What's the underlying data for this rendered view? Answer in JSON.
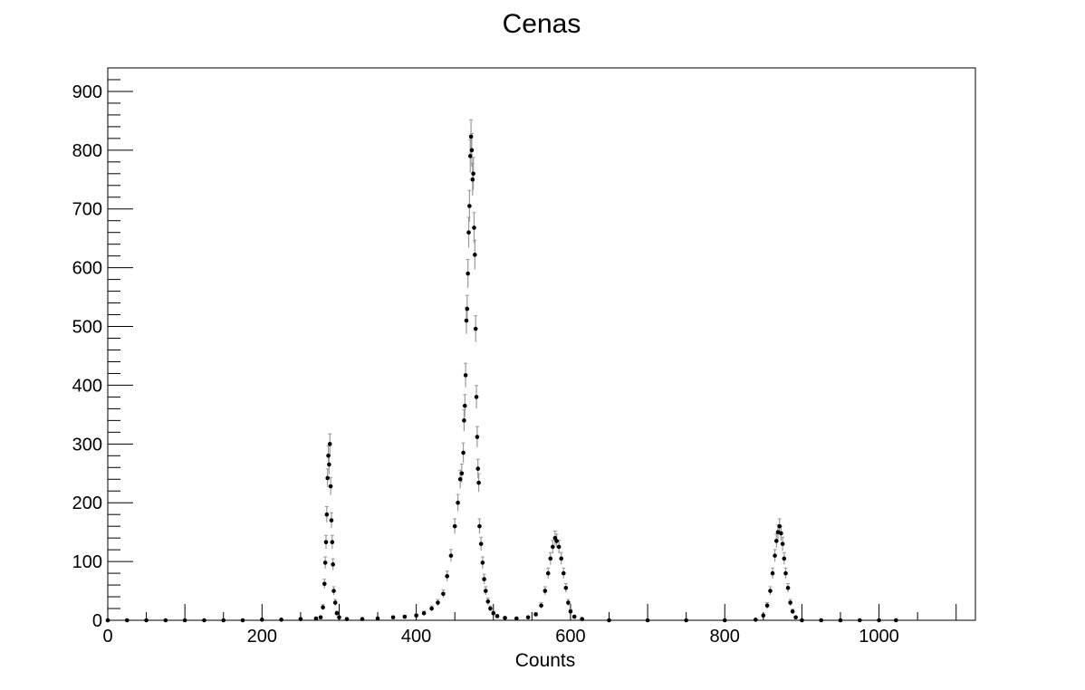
{
  "chart_data": {
    "type": "scatter",
    "title": "Cenas",
    "xlabel": "Counts",
    "ylabel": "",
    "xlim": [
      0,
      1125
    ],
    "ylim": [
      0,
      940
    ],
    "x_ticks": [
      0,
      200,
      400,
      600,
      800,
      1000
    ],
    "y_ticks": [
      0,
      100,
      200,
      300,
      400,
      500,
      600,
      700,
      800,
      900
    ],
    "grid": false,
    "legend": "none",
    "colors": {
      "marker": "#000000",
      "error_bar": "#9a9a9a",
      "axis": "#000000"
    },
    "series": [
      {
        "points": [
          {
            "x": 0,
            "y": 0
          },
          {
            "x": 25,
            "y": 0
          },
          {
            "x": 50,
            "y": 0
          },
          {
            "x": 75,
            "y": 0
          },
          {
            "x": 100,
            "y": 0
          },
          {
            "x": 125,
            "y": 0
          },
          {
            "x": 150,
            "y": 0
          },
          {
            "x": 175,
            "y": 0
          },
          {
            "x": 200,
            "y": 1
          },
          {
            "x": 225,
            "y": 1
          },
          {
            "x": 250,
            "y": 2
          },
          {
            "x": 270,
            "y": 3
          },
          {
            "x": 276,
            "y": 5
          },
          {
            "x": 279,
            "y": 22
          },
          {
            "x": 281,
            "y": 62
          },
          {
            "x": 282,
            "y": 98
          },
          {
            "x": 283,
            "y": 133
          },
          {
            "x": 284,
            "y": 180
          },
          {
            "x": 285,
            "y": 242
          },
          {
            "x": 286,
            "y": 280
          },
          {
            "x": 287,
            "y": 265
          },
          {
            "x": 288,
            "y": 300
          },
          {
            "x": 289,
            "y": 228
          },
          {
            "x": 290,
            "y": 170
          },
          {
            "x": 291,
            "y": 133
          },
          {
            "x": 292,
            "y": 95
          },
          {
            "x": 293,
            "y": 50
          },
          {
            "x": 295,
            "y": 30
          },
          {
            "x": 297,
            "y": 12
          },
          {
            "x": 300,
            "y": 5
          },
          {
            "x": 310,
            "y": 2
          },
          {
            "x": 330,
            "y": 2
          },
          {
            "x": 350,
            "y": 3
          },
          {
            "x": 370,
            "y": 5
          },
          {
            "x": 385,
            "y": 6
          },
          {
            "x": 400,
            "y": 8
          },
          {
            "x": 410,
            "y": 12
          },
          {
            "x": 420,
            "y": 20
          },
          {
            "x": 428,
            "y": 30
          },
          {
            "x": 435,
            "y": 45
          },
          {
            "x": 440,
            "y": 75
          },
          {
            "x": 445,
            "y": 110
          },
          {
            "x": 450,
            "y": 160
          },
          {
            "x": 454,
            "y": 200
          },
          {
            "x": 457,
            "y": 240
          },
          {
            "x": 459,
            "y": 250
          },
          {
            "x": 461,
            "y": 285
          },
          {
            "x": 462,
            "y": 340
          },
          {
            "x": 463,
            "y": 365
          },
          {
            "x": 464,
            "y": 417
          },
          {
            "x": 465,
            "y": 510
          },
          {
            "x": 466,
            "y": 530
          },
          {
            "x": 467,
            "y": 590
          },
          {
            "x": 468,
            "y": 660
          },
          {
            "x": 469,
            "y": 705
          },
          {
            "x": 470,
            "y": 790
          },
          {
            "x": 471,
            "y": 823
          },
          {
            "x": 472,
            "y": 800
          },
          {
            "x": 473,
            "y": 750
          },
          {
            "x": 474,
            "y": 760
          },
          {
            "x": 475,
            "y": 668
          },
          {
            "x": 476,
            "y": 622
          },
          {
            "x": 477,
            "y": 496
          },
          {
            "x": 478,
            "y": 380
          },
          {
            "x": 479,
            "y": 312
          },
          {
            "x": 480,
            "y": 258
          },
          {
            "x": 481,
            "y": 234
          },
          {
            "x": 482,
            "y": 160
          },
          {
            "x": 484,
            "y": 130
          },
          {
            "x": 486,
            "y": 98
          },
          {
            "x": 488,
            "y": 70
          },
          {
            "x": 490,
            "y": 50
          },
          {
            "x": 493,
            "y": 32
          },
          {
            "x": 496,
            "y": 20
          },
          {
            "x": 500,
            "y": 12
          },
          {
            "x": 505,
            "y": 7
          },
          {
            "x": 515,
            "y": 4
          },
          {
            "x": 530,
            "y": 3
          },
          {
            "x": 545,
            "y": 5
          },
          {
            "x": 555,
            "y": 10
          },
          {
            "x": 562,
            "y": 25
          },
          {
            "x": 567,
            "y": 50
          },
          {
            "x": 571,
            "y": 80
          },
          {
            "x": 574,
            "y": 105
          },
          {
            "x": 577,
            "y": 125
          },
          {
            "x": 580,
            "y": 140
          },
          {
            "x": 582,
            "y": 135
          },
          {
            "x": 585,
            "y": 125
          },
          {
            "x": 588,
            "y": 105
          },
          {
            "x": 591,
            "y": 80
          },
          {
            "x": 594,
            "y": 55
          },
          {
            "x": 597,
            "y": 30
          },
          {
            "x": 600,
            "y": 15
          },
          {
            "x": 605,
            "y": 6
          },
          {
            "x": 615,
            "y": 2
          },
          {
            "x": 650,
            "y": 0
          },
          {
            "x": 700,
            "y": 0
          },
          {
            "x": 750,
            "y": 0
          },
          {
            "x": 800,
            "y": 0
          },
          {
            "x": 840,
            "y": 1
          },
          {
            "x": 850,
            "y": 8
          },
          {
            "x": 855,
            "y": 25
          },
          {
            "x": 859,
            "y": 50
          },
          {
            "x": 862,
            "y": 80
          },
          {
            "x": 865,
            "y": 110
          },
          {
            "x": 867,
            "y": 135
          },
          {
            "x": 869,
            "y": 150
          },
          {
            "x": 871,
            "y": 160
          },
          {
            "x": 873,
            "y": 148
          },
          {
            "x": 875,
            "y": 130
          },
          {
            "x": 877,
            "y": 105
          },
          {
            "x": 879,
            "y": 80
          },
          {
            "x": 882,
            "y": 55
          },
          {
            "x": 885,
            "y": 30
          },
          {
            "x": 888,
            "y": 15
          },
          {
            "x": 892,
            "y": 5
          },
          {
            "x": 900,
            "y": 0
          },
          {
            "x": 925,
            "y": 0
          },
          {
            "x": 950,
            "y": 0
          },
          {
            "x": 975,
            "y": 0
          },
          {
            "x": 1000,
            "y": 0
          },
          {
            "x": 1022,
            "y": 0
          }
        ]
      }
    ]
  }
}
